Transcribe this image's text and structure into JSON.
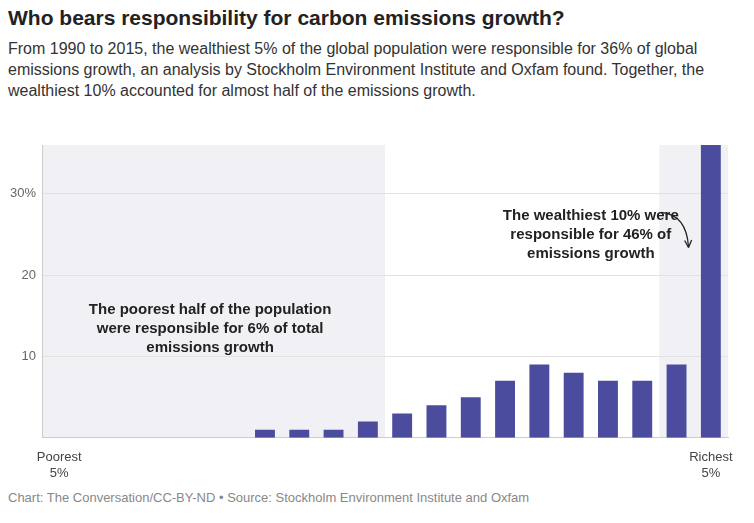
{
  "chart_data": {
    "type": "bar",
    "title": "Who bears responsibility for carbon emissions growth?",
    "subtitle": "From 1990 to 2015, the wealthiest 5% of the global population were responsible for 36% of global emissions growth, an analysis by Stockholm Environment Institute and Oxfam found. Together, the wealthiest 10% accounted for almost half of the emissions growth.",
    "annotations": [
      "The wealthiest 10% were responsible for 46% of emissions growth",
      "The poorest half of the population were responsible for 6% of total emissions growth"
    ],
    "source": "Chart: The Conversation/CC-BY-ND • Source: Stockholm Environment Institute and Oxfam",
    "categories": [
      "Poorest 5%",
      null,
      null,
      null,
      null,
      null,
      null,
      null,
      null,
      null,
      null,
      null,
      null,
      null,
      null,
      null,
      null,
      null,
      null,
      "Richest 5%"
    ],
    "values": [
      0,
      0,
      0,
      0,
      0,
      0,
      1,
      1,
      1,
      2,
      3,
      4,
      5,
      7,
      9,
      8,
      7,
      7,
      9,
      36
    ],
    "color": "#4b4c9e",
    "ylim": [
      0,
      36
    ],
    "yticks": [
      10,
      20,
      {
        "value": 30,
        "label": "30%"
      }
    ],
    "grid": true,
    "data_labels": false
  }
}
